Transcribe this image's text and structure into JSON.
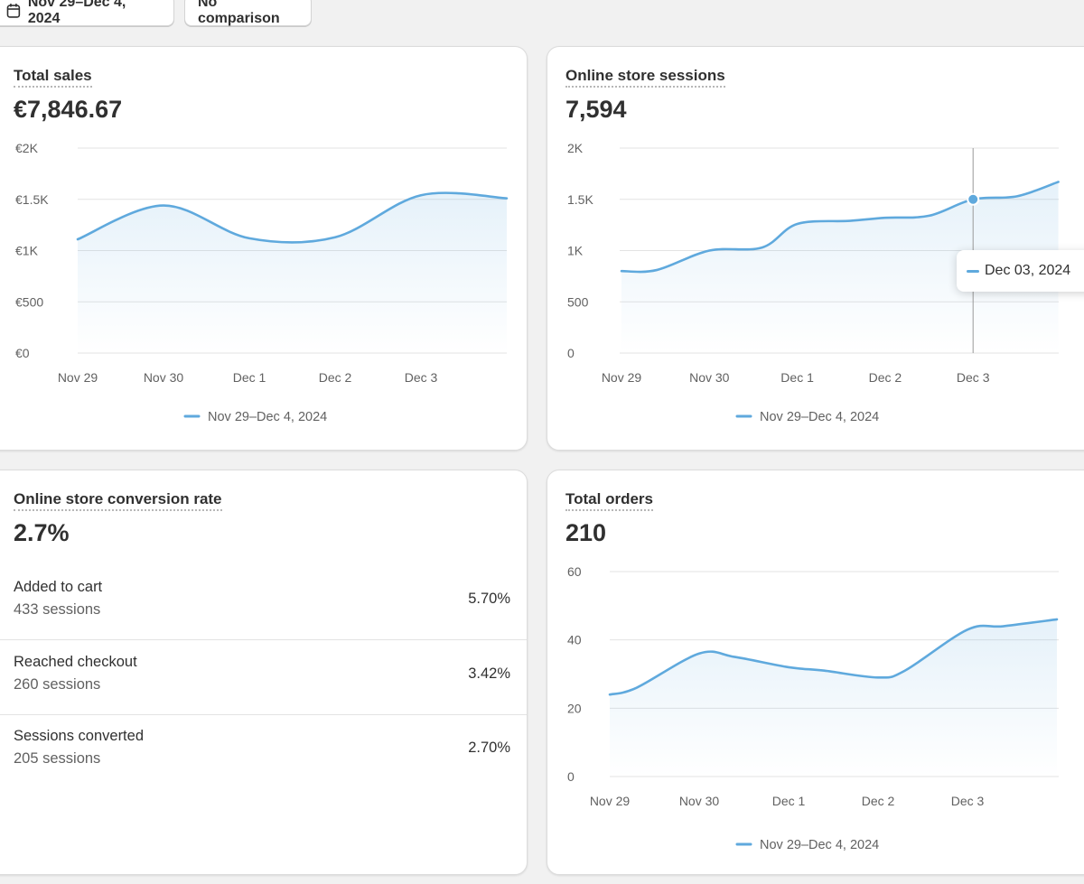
{
  "toolbar": {
    "date_range_label": "Nov 29–Dec 4, 2024",
    "comparison_label": "No comparison"
  },
  "accent_color": "#5fa9dd",
  "cards": {
    "total_sales": {
      "title": "Total sales",
      "value": "€7,846.67"
    },
    "sessions": {
      "title": "Online store sessions",
      "value": "7,594",
      "tooltip": "Dec 03, 2024"
    },
    "conversion": {
      "title": "Online store conversion rate",
      "value": "2.7%",
      "rows": [
        {
          "label": "Added to cart",
          "sub": "433 sessions",
          "pct": "5.70%"
        },
        {
          "label": "Reached checkout",
          "sub": "260 sessions",
          "pct": "3.42%"
        },
        {
          "label": "Sessions converted",
          "sub": "205 sessions",
          "pct": "2.70%"
        }
      ]
    },
    "total_orders": {
      "title": "Total orders",
      "value": "210"
    }
  },
  "chart_data": [
    {
      "id": "sales",
      "type": "area",
      "title": "Total sales",
      "categories": [
        "Nov 29",
        "Nov 30",
        "Dec 1",
        "Dec 2",
        "Dec 3"
      ],
      "x": [
        0,
        1,
        2,
        3,
        4,
        5
      ],
      "series": [
        {
          "name": "Nov 29–Dec 4, 2024",
          "values": [
            1110,
            1440,
            1120,
            1130,
            1540,
            1510
          ]
        }
      ],
      "y_ticks": [
        0,
        500,
        1000,
        1500,
        2000
      ],
      "y_tick_labels": [
        "€0",
        "€500",
        "€1K",
        "€1.5K",
        "€2K"
      ],
      "ylim": [
        0,
        2000
      ],
      "legend": "Nov 29–Dec 4, 2024"
    },
    {
      "id": "sessions",
      "type": "area",
      "title": "Online store sessions",
      "categories": [
        "Nov 29",
        "Nov 30",
        "Dec 1",
        "Dec 2",
        "Dec 3"
      ],
      "x": [
        0,
        0.4,
        1,
        1.6,
        2,
        2.6,
        3,
        3.5,
        4,
        4.5,
        4.97
      ],
      "series": [
        {
          "name": "Nov 29–Dec 4, 2024",
          "values": [
            800,
            810,
            1000,
            1030,
            1260,
            1290,
            1320,
            1340,
            1500,
            1530,
            1670
          ]
        }
      ],
      "y_ticks": [
        0,
        500,
        1000,
        1500,
        2000
      ],
      "y_tick_labels": [
        "0",
        "500",
        "1K",
        "1.5K",
        "2K"
      ],
      "ylim": [
        0,
        2000
      ],
      "highlight_x": 4,
      "legend": "Nov 29–Dec 4, 2024"
    },
    {
      "id": "orders",
      "type": "area",
      "title": "Total orders",
      "categories": [
        "Nov 29",
        "Nov 30",
        "Dec 1",
        "Dec 2",
        "Dec 3"
      ],
      "x": [
        0,
        0.3,
        1,
        1.4,
        2,
        2.4,
        3,
        3.3,
        4,
        4.4,
        5
      ],
      "series": [
        {
          "name": "Nov 29–Dec 4, 2024",
          "values": [
            24,
            26,
            36,
            35,
            32,
            31,
            29,
            31,
            43,
            44,
            46
          ]
        }
      ],
      "y_ticks": [
        0,
        20,
        40,
        60
      ],
      "y_tick_labels": [
        "0",
        "20",
        "40",
        "60"
      ],
      "ylim": [
        0,
        60
      ],
      "legend": "Nov 29–Dec 4, 2024"
    }
  ]
}
